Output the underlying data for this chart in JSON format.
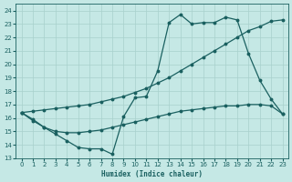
{
  "xlabel": "Humidex (Indice chaleur)",
  "bg_color": "#c5e8e5",
  "grid_color": "#a8d0cc",
  "line_color": "#1a6060",
  "xlim": [
    -0.5,
    23.5
  ],
  "ylim": [
    13,
    24.5
  ],
  "yticks": [
    13,
    14,
    15,
    16,
    17,
    18,
    19,
    20,
    21,
    22,
    23,
    24
  ],
  "xticks": [
    0,
    1,
    2,
    3,
    4,
    5,
    6,
    7,
    8,
    9,
    10,
    11,
    12,
    13,
    14,
    15,
    16,
    17,
    18,
    19,
    20,
    21,
    22,
    23
  ],
  "series1_x": [
    0,
    1,
    2,
    3,
    4,
    5,
    6,
    7,
    8,
    9,
    10,
    11,
    12,
    13,
    14,
    15,
    16,
    17,
    18,
    19,
    20,
    21,
    22,
    23
  ],
  "series1_y": [
    16.4,
    15.9,
    15.3,
    14.8,
    14.3,
    13.8,
    13.7,
    13.7,
    13.3,
    16.1,
    17.5,
    17.6,
    19.5,
    23.1,
    23.7,
    23.0,
    23.1,
    23.1,
    23.5,
    23.3,
    20.8,
    18.8,
    17.4,
    16.3
  ],
  "series2_x": [
    0,
    1,
    2,
    3,
    4,
    5,
    6,
    7,
    8,
    9,
    10,
    11,
    12,
    13,
    14,
    15,
    16,
    17,
    18,
    19,
    20,
    21,
    22,
    23
  ],
  "series2_y": [
    16.4,
    16.5,
    16.6,
    16.7,
    16.8,
    16.9,
    17.0,
    17.2,
    17.4,
    17.6,
    17.9,
    18.2,
    18.6,
    19.0,
    19.5,
    20.0,
    20.5,
    21.0,
    21.5,
    22.0,
    22.5,
    22.8,
    23.2,
    23.3
  ],
  "series3_x": [
    0,
    1,
    2,
    3,
    4,
    5,
    6,
    7,
    8,
    9,
    10,
    11,
    12,
    13,
    14,
    15,
    16,
    17,
    18,
    19,
    20,
    21,
    22,
    23
  ],
  "series3_y": [
    16.4,
    15.8,
    15.3,
    15.0,
    14.9,
    14.9,
    15.0,
    15.1,
    15.3,
    15.5,
    15.7,
    15.9,
    16.1,
    16.3,
    16.5,
    16.6,
    16.7,
    16.8,
    16.9,
    16.9,
    17.0,
    17.0,
    16.9,
    16.3
  ]
}
